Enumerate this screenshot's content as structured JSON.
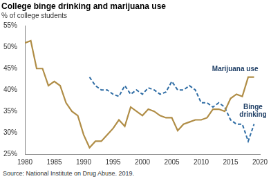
{
  "chart_data": {
    "type": "line",
    "title": "College binge drinking and marijuana use",
    "subtitle": "% of college students",
    "source": "Source: National Institute on Drug Abuse. 2019.",
    "x": [
      1980,
      1981,
      1982,
      1983,
      1984,
      1985,
      1986,
      1987,
      1988,
      1989,
      1990,
      1991,
      1992,
      1993,
      1994,
      1995,
      1996,
      1997,
      1998,
      1999,
      2000,
      2001,
      2002,
      2003,
      2004,
      2005,
      2006,
      2007,
      2008,
      2009,
      2010,
      2011,
      2012,
      2013,
      2014,
      2015,
      2016,
      2017,
      2018,
      2019
    ],
    "series": [
      {
        "name": "Marijuana use",
        "color": "#b08d46",
        "line_style": "solid",
        "values": [
          51,
          51.5,
          45,
          45,
          41,
          42,
          41,
          37,
          35,
          34,
          29.5,
          26.5,
          28,
          28,
          29.5,
          31,
          33,
          31.5,
          36,
          35,
          34,
          35.5,
          35,
          34,
          33.5,
          33.5,
          30.5,
          32,
          32.5,
          33,
          33,
          33.5,
          35.5,
          35.5,
          35,
          38,
          39,
          38.5,
          43,
          43
        ]
      },
      {
        "name": "Binge drinking",
        "color": "#2e6ca4",
        "line_style": "dashed",
        "values": [
          null,
          null,
          null,
          null,
          null,
          null,
          null,
          null,
          null,
          null,
          null,
          43,
          41,
          40,
          40,
          39,
          38.5,
          41,
          39,
          40,
          39,
          40.5,
          40,
          39,
          39.5,
          42,
          40,
          40,
          41,
          40,
          37,
          37,
          36,
          37,
          36,
          33,
          32,
          32,
          28,
          32
        ]
      }
    ],
    "xlim": [
      1980,
      2020
    ],
    "xticks": [
      1980,
      1985,
      1990,
      1995,
      2000,
      2005,
      2010,
      2015,
      2020
    ],
    "ylim": [
      25,
      55
    ],
    "yticks": [
      {
        "value": 25,
        "label": "25%"
      },
      {
        "value": 30,
        "label": "30%"
      },
      {
        "value": 35,
        "label": "35%"
      },
      {
        "value": 40,
        "label": "40%"
      },
      {
        "value": 45,
        "label": "45%"
      },
      {
        "value": 50,
        "label": "50%"
      },
      {
        "value": 55,
        "label": "55%"
      }
    ],
    "grid": false
  }
}
